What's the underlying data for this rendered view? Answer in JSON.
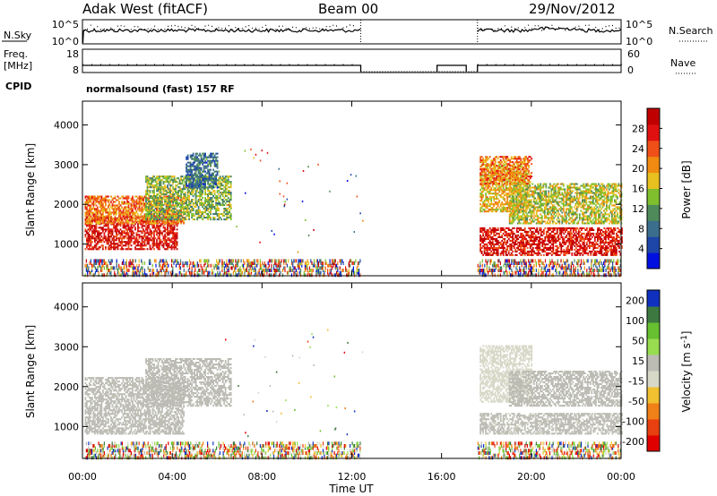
{
  "header": {
    "station": "Adak West (fitACF)",
    "beam": "Beam 00",
    "date": "29/Nov/2012"
  },
  "noise_panel": {
    "left_label": "N.Sky",
    "right_label": "N.Search",
    "ticks_left": [
      "10^5",
      "10^0"
    ],
    "ticks_right": [
      "10^5",
      "10^0"
    ]
  },
  "freq_panel": {
    "left_label_line1": "Freq.",
    "left_label_line2": "[MHz]",
    "cpid_label": "CPID",
    "right_label": "Nave",
    "ticks_left": [
      "18",
      "8"
    ],
    "ticks_right": [
      "60",
      "0"
    ]
  },
  "mode_text": "normalsound (fast) 157 RF",
  "colors": {
    "power_scale": [
      "#0010e0",
      "#1e46a8",
      "#3a6e8c",
      "#4e8a5a",
      "#7fbf2e",
      "#e8c020",
      "#f08a10",
      "#ee5018",
      "#e01010",
      "#c00000"
    ],
    "velocity_scale": [
      "#1030c0",
      "#3c7840",
      "#66c030",
      "#98dc50",
      "#bcbcb4",
      "#d8d8c8",
      "#f0c030",
      "#f08018",
      "#e84010",
      "#e00000"
    ]
  },
  "chart_data": [
    {
      "type": "heatmap",
      "name": "power",
      "ylabel": "Slant Range [km]",
      "yticks": [
        "1000",
        "2000",
        "3000",
        "4000"
      ],
      "ylim": [
        200,
        4600
      ],
      "xlim": [
        0,
        24
      ],
      "colorbar": {
        "label": "Power [dB]",
        "ticks": [
          "4",
          "8",
          "12",
          "16",
          "20",
          "24",
          "28"
        ],
        "range": [
          0,
          32
        ]
      },
      "echo_bands": [
        {
          "t0": 0.1,
          "t1": 4.2,
          "r0": 850,
          "r1": 1700,
          "value": 28
        },
        {
          "t0": 0.1,
          "t1": 4.5,
          "r0": 1500,
          "r1": 2200,
          "value": 22
        },
        {
          "t0": 2.8,
          "t1": 6.6,
          "r0": 1600,
          "r1": 2700,
          "value": 14
        },
        {
          "t0": 4.6,
          "t1": 6.0,
          "r0": 2400,
          "r1": 3300,
          "value": 8
        },
        {
          "t0": 17.7,
          "t1": 24.0,
          "r0": 700,
          "r1": 1400,
          "value": 28
        },
        {
          "t0": 17.7,
          "t1": 19.8,
          "r0": 1800,
          "r1": 3000,
          "value": 18
        },
        {
          "t0": 19.0,
          "t1": 24.0,
          "r0": 1500,
          "r1": 2500,
          "value": 16
        },
        {
          "t0": 17.7,
          "t1": 20.0,
          "r0": 2500,
          "r1": 3200,
          "value": 22
        }
      ]
    },
    {
      "type": "heatmap",
      "name": "velocity",
      "ylabel": "Slant Range [km]",
      "yticks": [
        "1000",
        "2000",
        "3000",
        "4000"
      ],
      "ylim": [
        200,
        4600
      ],
      "xlim": [
        0,
        24
      ],
      "xlabel": "Time UT",
      "xticks": [
        "00:00",
        "04:00",
        "08:00",
        "12:00",
        "16:00",
        "20:00",
        "00:00"
      ],
      "colorbar": {
        "label": "Velocity [m s",
        "label_exp": "-1",
        "label_end": "]",
        "ticks": [
          "200",
          "100",
          "50",
          "15",
          "-15",
          "-50",
          "-100",
          "-200"
        ],
        "range": [
          -250,
          250
        ]
      },
      "echo_bands": [
        {
          "t0": 0.1,
          "t1": 4.5,
          "r0": 800,
          "r1": 2200,
          "value": 5
        },
        {
          "t0": 2.8,
          "t1": 6.6,
          "r0": 1500,
          "r1": 2700,
          "value": 8
        },
        {
          "t0": 17.7,
          "t1": 24.0,
          "r0": 800,
          "r1": 1300,
          "value": 4
        },
        {
          "t0": 17.7,
          "t1": 20.0,
          "r0": 1600,
          "r1": 3000,
          "value": -20
        },
        {
          "t0": 19.0,
          "t1": 24.0,
          "r0": 1500,
          "r1": 2400,
          "value": 10
        }
      ]
    }
  ]
}
